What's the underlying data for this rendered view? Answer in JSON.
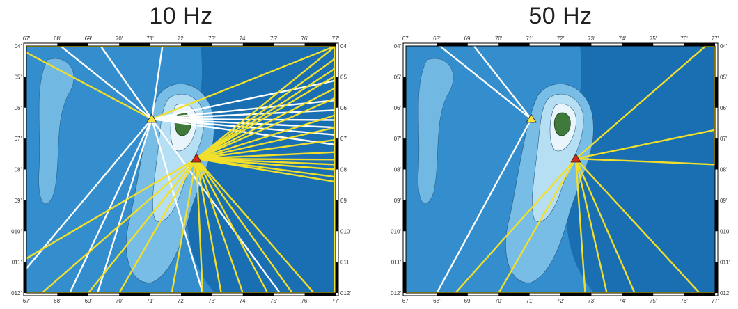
{
  "panels": [
    {
      "title": "10 Hz",
      "top_ticks": [
        "67'",
        "68'",
        "69'",
        "70'",
        "71'",
        "72'",
        "73'",
        "74'",
        "75'",
        "76'",
        "77'"
      ],
      "bottom_ticks": [
        "67'",
        "68'",
        "69'",
        "70'",
        "71'",
        "72'",
        "73'",
        "74'",
        "75'",
        "76'",
        "77'"
      ],
      "left_ticks": [
        "04'",
        "05'",
        "06'",
        "07'",
        "08'",
        "09'",
        "010'",
        "011'",
        "012'"
      ],
      "right_ticks": [
        "04'",
        "05'",
        "06'",
        "07'",
        "08'",
        "09'",
        "010'",
        "011'",
        "012'"
      ],
      "rays": [
        {
          "src": "yellow",
          "to": [
            -0.04,
            0.0
          ],
          "color": "yellow"
        },
        {
          "src": "yellow",
          "to": [
            0.11,
            0.0
          ],
          "color": "white"
        },
        {
          "src": "yellow",
          "to": [
            0.24,
            0.0
          ],
          "color": "white"
        },
        {
          "src": "yellow",
          "to": [
            0.44,
            0.0
          ],
          "color": "white"
        },
        {
          "src": "yellow",
          "to": [
            1.0,
            0.0
          ],
          "color": "yellow"
        },
        {
          "src": "yellow",
          "to": [
            1.0,
            0.14
          ],
          "color": "white"
        },
        {
          "src": "yellow",
          "to": [
            1.0,
            0.22
          ],
          "color": "white"
        },
        {
          "src": "yellow",
          "to": [
            1.0,
            0.26
          ],
          "color": "white"
        },
        {
          "src": "yellow",
          "to": [
            1.0,
            0.3
          ],
          "color": "white"
        },
        {
          "src": "yellow",
          "to": [
            1.0,
            0.33
          ],
          "color": "white"
        },
        {
          "src": "yellow",
          "to": [
            1.0,
            0.36
          ],
          "color": "white"
        },
        {
          "src": "yellow",
          "to": [
            1.0,
            0.4
          ],
          "color": "white"
        },
        {
          "src": "yellow",
          "to": [
            0.0,
            0.9
          ],
          "color": "white"
        },
        {
          "src": "yellow",
          "to": [
            0.14,
            1.0
          ],
          "color": "white"
        },
        {
          "src": "yellow",
          "to": [
            0.23,
            1.0
          ],
          "color": "white"
        },
        {
          "src": "yellow",
          "to": [
            0.57,
            1.0
          ],
          "color": "white"
        },
        {
          "src": "yellow",
          "to": [
            0.82,
            1.0
          ],
          "color": "white"
        },
        {
          "src": "red",
          "to": [
            1.0,
            0.0
          ],
          "color": "yellow"
        },
        {
          "src": "red",
          "to": [
            1.0,
            0.05
          ],
          "color": "yellow"
        },
        {
          "src": "red",
          "to": [
            1.0,
            0.09
          ],
          "color": "yellow"
        },
        {
          "src": "red",
          "to": [
            1.0,
            0.12
          ],
          "color": "yellow"
        },
        {
          "src": "red",
          "to": [
            1.0,
            0.17
          ],
          "color": "yellow"
        },
        {
          "src": "red",
          "to": [
            1.0,
            0.21
          ],
          "color": "yellow"
        },
        {
          "src": "red",
          "to": [
            1.0,
            0.28
          ],
          "color": "yellow"
        },
        {
          "src": "red",
          "to": [
            1.0,
            0.33
          ],
          "color": "yellow"
        },
        {
          "src": "red",
          "to": [
            1.0,
            0.38
          ],
          "color": "yellow"
        },
        {
          "src": "red",
          "to": [
            1.0,
            0.43
          ],
          "color": "yellow"
        },
        {
          "src": "red",
          "to": [
            1.0,
            0.46
          ],
          "color": "yellow"
        },
        {
          "src": "red",
          "to": [
            1.0,
            0.48
          ],
          "color": "yellow"
        },
        {
          "src": "red",
          "to": [
            1.0,
            0.5
          ],
          "color": "yellow"
        },
        {
          "src": "red",
          "to": [
            1.0,
            0.53
          ],
          "color": "yellow"
        },
        {
          "src": "red",
          "to": [
            1.0,
            0.55
          ],
          "color": "yellow"
        },
        {
          "src": "red",
          "to": [
            0.0,
            0.86
          ],
          "color": "yellow"
        },
        {
          "src": "red",
          "to": [
            0.05,
            1.0
          ],
          "color": "yellow"
        },
        {
          "src": "red",
          "to": [
            0.2,
            1.0
          ],
          "color": "yellow"
        },
        {
          "src": "red",
          "to": [
            0.3,
            1.0
          ],
          "color": "yellow"
        },
        {
          "src": "red",
          "to": [
            0.47,
            1.0
          ],
          "color": "yellow"
        },
        {
          "src": "red",
          "to": [
            0.57,
            1.0
          ],
          "color": "yellow"
        },
        {
          "src": "red",
          "to": [
            0.63,
            1.0
          ],
          "color": "yellow"
        },
        {
          "src": "red",
          "to": [
            0.7,
            1.0
          ],
          "color": "yellow"
        },
        {
          "src": "red",
          "to": [
            0.78,
            1.0
          ],
          "color": "yellow"
        },
        {
          "src": "red",
          "to": [
            0.86,
            1.0
          ],
          "color": "yellow"
        },
        {
          "src": "red",
          "to": [
            0.93,
            1.0
          ],
          "color": "yellow"
        }
      ],
      "frame_lines": [
        {
          "from": [
            0.0,
            0.0
          ],
          "to": [
            1.0,
            0.0
          ]
        },
        {
          "from": [
            1.0,
            0.0
          ],
          "to": [
            1.0,
            1.0
          ]
        },
        {
          "from": [
            0.0,
            1.0
          ],
          "to": [
            1.0,
            1.0
          ]
        }
      ]
    },
    {
      "title": "50 Hz",
      "top_ticks": [
        "67'",
        "68'",
        "69'",
        "70'",
        "71'",
        "72'",
        "73'",
        "74'",
        "75'",
        "76'",
        "77'"
      ],
      "bottom_ticks": [
        "67'",
        "68'",
        "69'",
        "70'",
        "71'",
        "72'",
        "73'",
        "74'",
        "75'",
        "76'",
        "77'"
      ],
      "left_ticks": [
        "04'",
        "05'",
        "06'",
        "07'",
        "08'",
        "09'",
        "010'",
        "011'",
        "012'"
      ],
      "right_ticks": [
        "04'",
        "05'",
        "06'",
        "07'",
        "08'",
        "09'",
        "010'",
        "011'",
        "012'"
      ],
      "rays": [
        {
          "src": "yellow",
          "to": [
            0.11,
            0.0
          ],
          "color": "white"
        },
        {
          "src": "yellow",
          "to": [
            0.22,
            0.0
          ],
          "color": "white"
        },
        {
          "src": "yellow",
          "to": [
            0.1,
            1.0
          ],
          "color": "white"
        },
        {
          "src": "red",
          "to": [
            0.97,
            0.0
          ],
          "color": "yellow"
        },
        {
          "src": "red",
          "to": [
            1.0,
            0.34
          ],
          "color": "yellow"
        },
        {
          "src": "red",
          "to": [
            1.0,
            0.48
          ],
          "color": "yellow"
        },
        {
          "src": "red",
          "to": [
            0.16,
            1.0
          ],
          "color": "yellow"
        },
        {
          "src": "red",
          "to": [
            0.3,
            1.0
          ],
          "color": "yellow"
        },
        {
          "src": "red",
          "to": [
            0.58,
            1.0
          ],
          "color": "yellow"
        },
        {
          "src": "red",
          "to": [
            0.65,
            1.0
          ],
          "color": "yellow"
        },
        {
          "src": "red",
          "to": [
            0.74,
            1.0
          ],
          "color": "yellow"
        },
        {
          "src": "red",
          "to": [
            0.95,
            1.0
          ],
          "color": "yellow"
        }
      ],
      "frame_lines": [
        {
          "from": [
            0.97,
            0.0
          ],
          "to": [
            1.0,
            0.0
          ]
        },
        {
          "from": [
            1.0,
            0.0
          ],
          "to": [
            1.0,
            0.48
          ]
        },
        {
          "from": [
            0.0,
            1.0
          ],
          "to": [
            1.0,
            1.0
          ]
        }
      ]
    }
  ],
  "colors": {
    "ocean_deep": "#1a6fb2",
    "ocean_mid": "#3a93d0",
    "ocean_shallow": "#78bde6",
    "shelf": "#b7dff3",
    "island_land": "#3f7a3a",
    "ray_yellow": "#f2df2c",
    "ray_white": "#ffffff",
    "source_yellow": "#f4e13a",
    "source_red": "#d42a1a"
  }
}
